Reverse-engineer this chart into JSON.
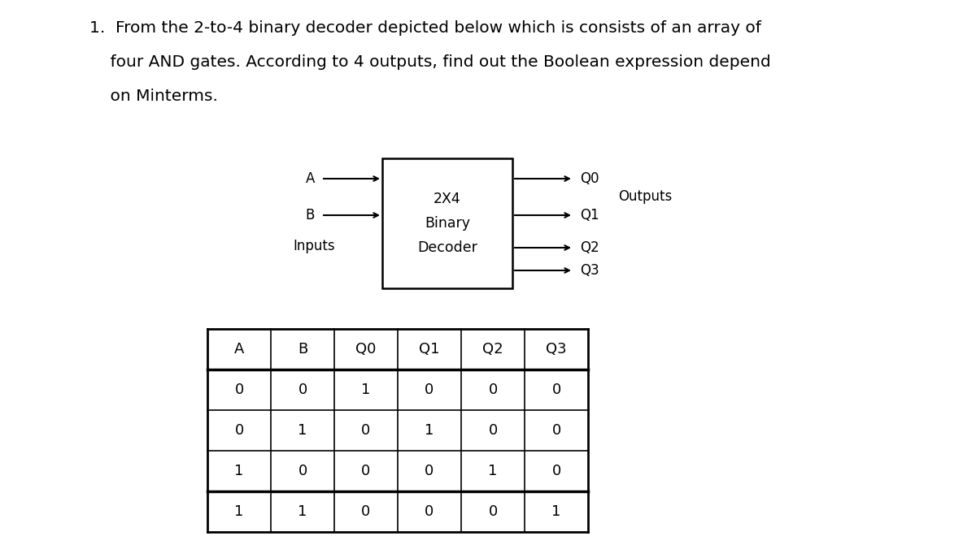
{
  "background_color": "#ffffff",
  "title_line1": "1.  From the 2-to-4 binary decoder depicted below which is consists of an array of",
  "title_line2": "    four AND gates. According to 4 outputs, find out the Boolean expression depend",
  "title_line3": "    on Minterms.",
  "box_label": [
    "2X4",
    "Binary",
    "Decoder"
  ],
  "input_labels": [
    "A",
    "B"
  ],
  "inputs_group_label": "Inputs",
  "output_labels": [
    "Q0",
    "Q1",
    "Q2",
    "Q3"
  ],
  "outputs_group_label": "Outputs",
  "table_headers": [
    "A",
    "B",
    "Q0",
    "Q1",
    "Q2",
    "Q3"
  ],
  "table_data": [
    [
      "0",
      "0",
      "1",
      "0",
      "0",
      "0"
    ],
    [
      "0",
      "1",
      "0",
      "1",
      "0",
      "0"
    ],
    [
      "1",
      "0",
      "0",
      "0",
      "1",
      "0"
    ],
    [
      "1",
      "1",
      "0",
      "0",
      "0",
      "1"
    ]
  ],
  "font_size_title": 14.5,
  "font_size_box": 12.5,
  "font_size_diagram": 12,
  "font_size_table_header": 13,
  "font_size_table_data": 13
}
